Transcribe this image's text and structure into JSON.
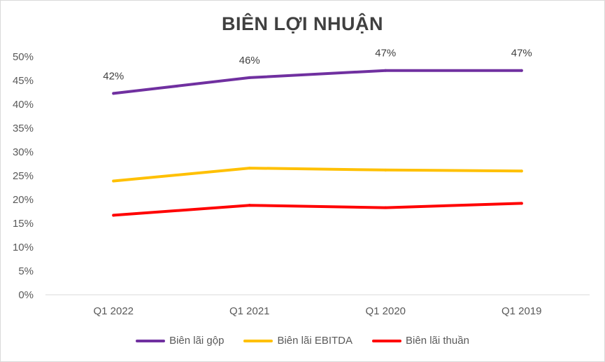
{
  "chart_data": {
    "type": "line",
    "title": "BIÊN LỢI NHUẬN",
    "categories": [
      "Q1 2022",
      "Q1 2021",
      "Q1 2020",
      "Q1 2019"
    ],
    "y_ticks": [
      "0%",
      "5%",
      "10%",
      "15%",
      "20%",
      "25%",
      "30%",
      "35%",
      "40%",
      "45%",
      "50%"
    ],
    "ylim": [
      0,
      50
    ],
    "grid": false,
    "legend_position": "bottom",
    "series": [
      {
        "name": "Biên lãi gộp",
        "color": "#7030a0",
        "values": [
          42.3,
          45.6,
          47.1,
          47.1
        ],
        "labels": [
          "42%",
          "46%",
          "47%",
          "47%"
        ]
      },
      {
        "name": "Biên lãi EBITDA",
        "color": "#ffc000",
        "values": [
          23.9,
          26.6,
          26.2,
          26.0
        ]
      },
      {
        "name": "Biên lãi thuần",
        "color": "#ff0000",
        "values": [
          16.7,
          18.8,
          18.3,
          19.2
        ]
      }
    ]
  }
}
